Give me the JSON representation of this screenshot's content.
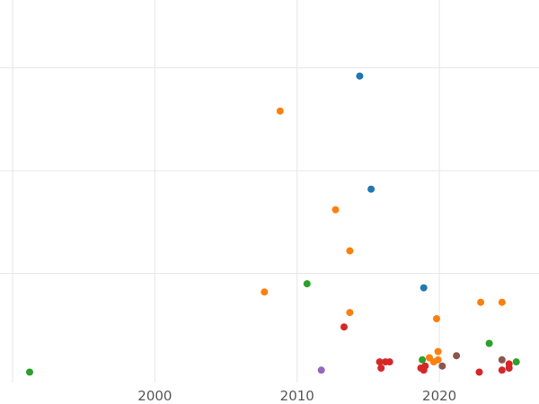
{
  "colors": {
    "background": "#ffffff",
    "grid": "#e6e6e6"
  },
  "chart_data": {
    "type": "scatter",
    "grid": true,
    "legend": "none",
    "xlim": [
      1990,
      2027
    ],
    "ylim": [
      -0.3,
      18.3
    ],
    "x_ticks": [
      2000,
      2010,
      2020
    ],
    "x_tick_labels": [
      "2000",
      "2010",
      "2020"
    ],
    "y_ticks": [
      5,
      10,
      15
    ],
    "series": [
      {
        "color": "#1f77b4",
        "points": [
          [
            2014.4,
            14.6
          ],
          [
            2015.2,
            9.1
          ],
          [
            2018.9,
            4.3
          ]
        ]
      },
      {
        "color": "#ff7f0e",
        "points": [
          [
            2008.8,
            12.9
          ],
          [
            2012.7,
            8.1
          ],
          [
            2013.7,
            6.1
          ],
          [
            2007.7,
            4.1
          ],
          [
            2013.7,
            3.1
          ],
          [
            2019.8,
            2.8
          ],
          [
            2022.9,
            3.6
          ],
          [
            2024.4,
            3.6
          ],
          [
            2019.9,
            1.2
          ],
          [
            2019.3,
            0.9
          ],
          [
            2019.6,
            0.7
          ],
          [
            2019.9,
            0.8
          ]
        ]
      },
      {
        "color": "#2ca02c",
        "points": [
          [
            1991.2,
            0.2
          ],
          [
            2010.7,
            4.5
          ],
          [
            2023.5,
            1.6
          ],
          [
            2018.8,
            0.8
          ],
          [
            2025.4,
            0.7
          ]
        ]
      },
      {
        "color": "#d62728",
        "points": [
          [
            2013.3,
            2.4
          ],
          [
            2015.8,
            0.7
          ],
          [
            2016.2,
            0.7
          ],
          [
            2016.5,
            0.7
          ],
          [
            2015.9,
            0.4
          ],
          [
            2018.7,
            0.4
          ],
          [
            2019.0,
            0.5
          ],
          [
            2018.9,
            0.3
          ],
          [
            2022.8,
            0.2
          ],
          [
            2024.4,
            0.3
          ],
          [
            2024.9,
            0.4
          ],
          [
            2024.9,
            0.6
          ]
        ]
      },
      {
        "color": "#9467bd",
        "points": [
          [
            2011.7,
            0.3
          ]
        ]
      },
      {
        "color": "#8c564b",
        "points": [
          [
            2021.2,
            1.0
          ],
          [
            2020.2,
            0.5
          ],
          [
            2024.4,
            0.8
          ]
        ]
      }
    ]
  }
}
